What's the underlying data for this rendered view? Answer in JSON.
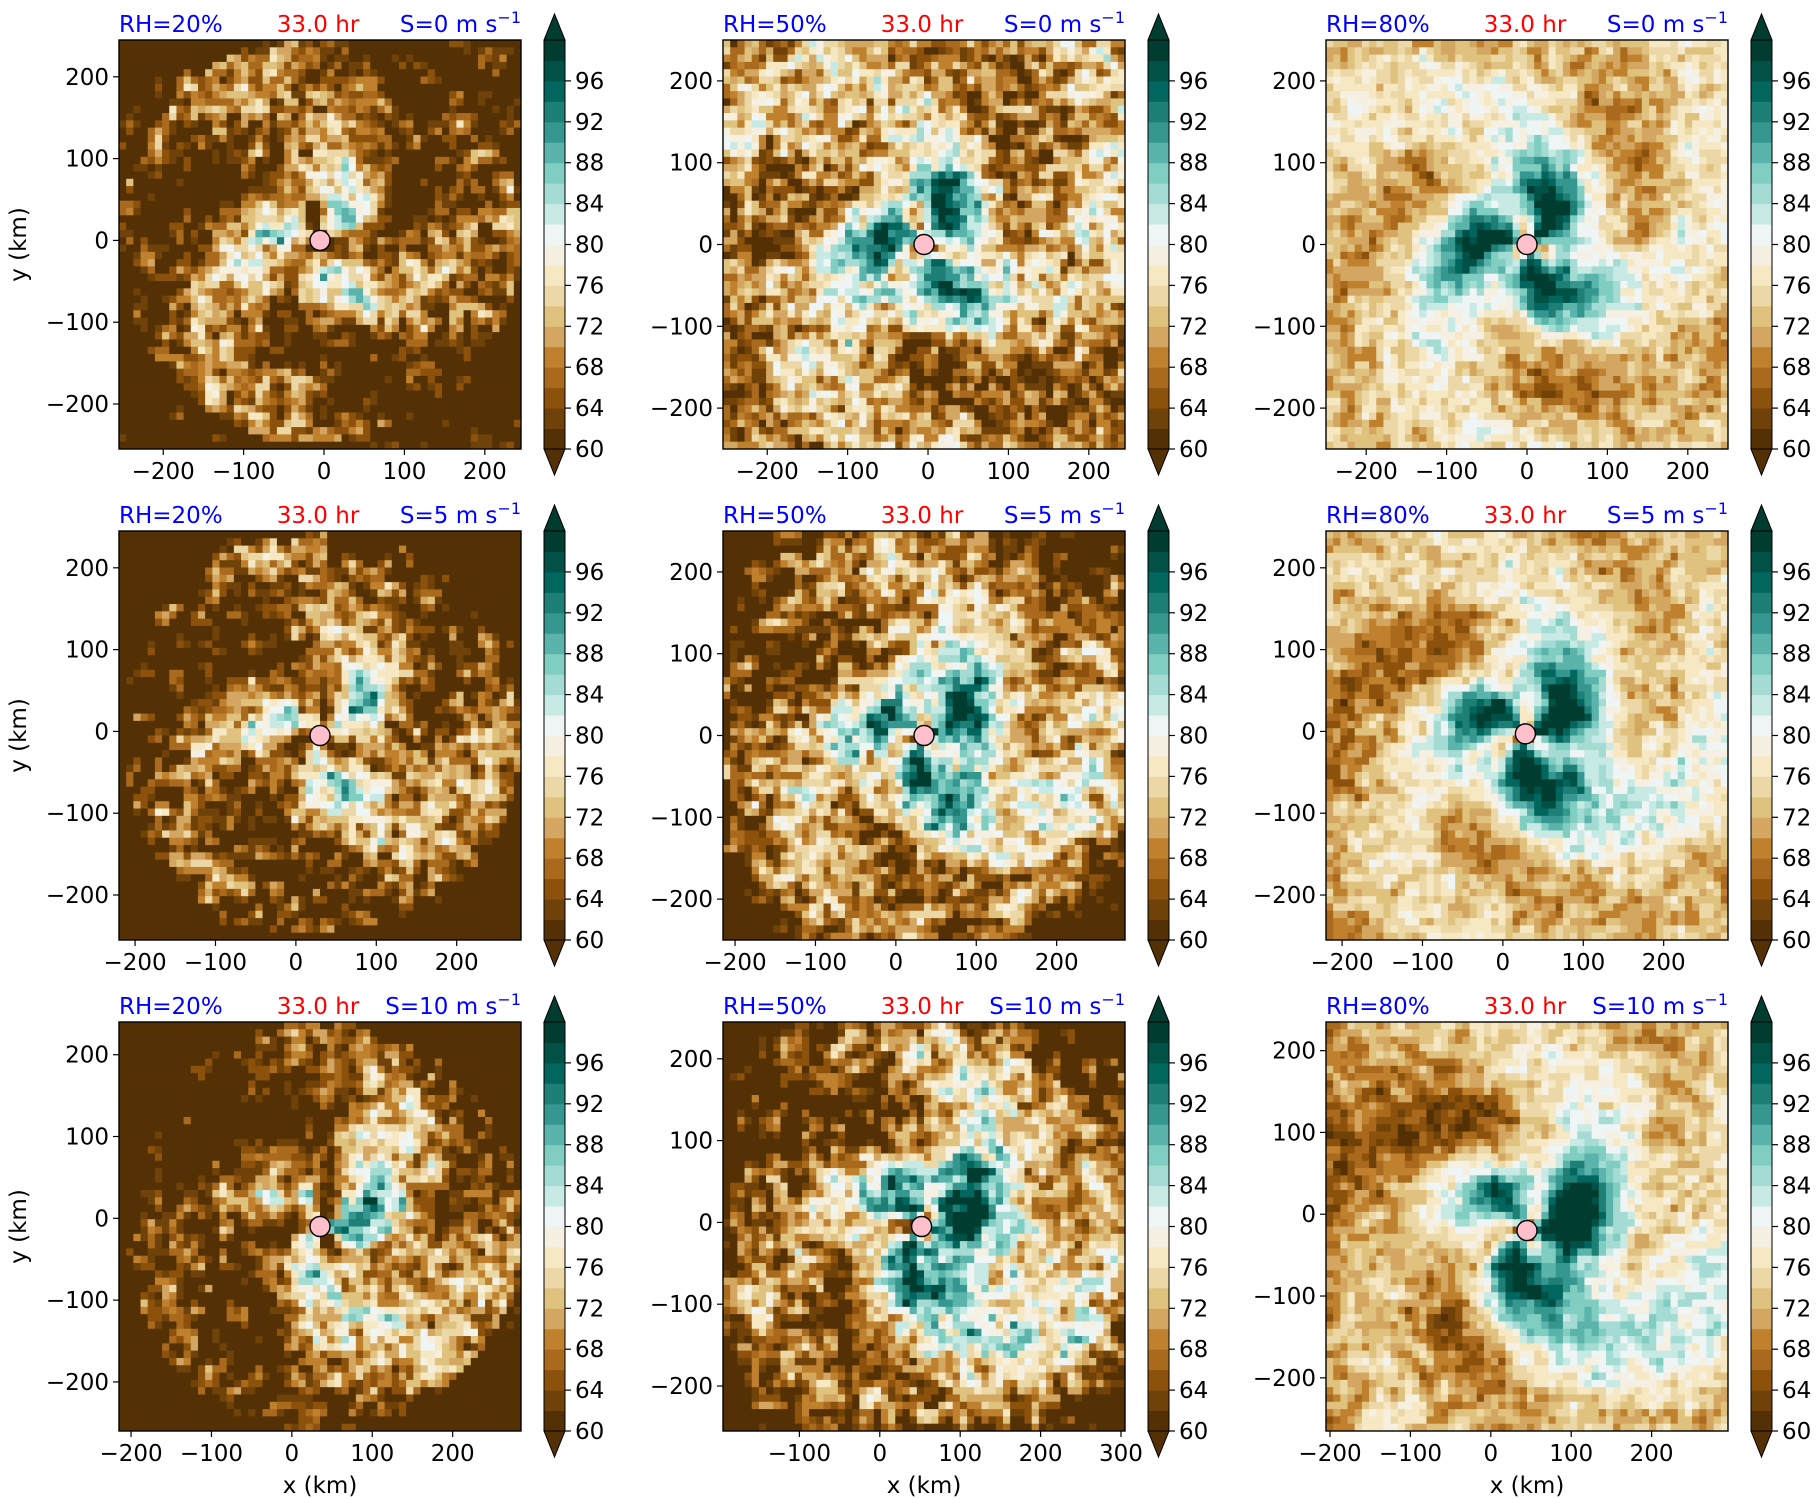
{
  "figure": {
    "colorbar": {
      "tick_labels": [
        "60",
        "64",
        "68",
        "72",
        "76",
        "80",
        "84",
        "88",
        "92",
        "96"
      ],
      "range": [
        60,
        100
      ],
      "colors": [
        "#543005",
        "#6e4209",
        "#8c510a",
        "#a96a1e",
        "#bf812d",
        "#d3a761",
        "#dfc27d",
        "#ecd8a6",
        "#f6e8c3",
        "#f5f0e1",
        "#eef5f4",
        "#c7eae5",
        "#a4dbd2",
        "#80cdc1",
        "#5ab4ab",
        "#35978f",
        "#1e7f77",
        "#01665e",
        "#015147",
        "#003c30"
      ],
      "extend": "both"
    },
    "row_y_axis_label": "y (km)",
    "col_x_axis_label": "x (km)",
    "center_marker_color": "#ffc0cb"
  },
  "chart_data": [
    {
      "type": "heatmap",
      "rh": "RH=20%",
      "time": "33.0 hr",
      "shear": "S=0 m s",
      "shear_exp": "−1",
      "xlim": [
        -255,
        245
      ],
      "ylim": [
        -255,
        245
      ],
      "xticks": [
        -200,
        -100,
        0,
        100,
        200
      ],
      "yticks": [
        -200,
        -100,
        0,
        100,
        200
      ],
      "center": [
        -5,
        0
      ],
      "ylabel": "y (km)",
      "xlabel": "",
      "variable_range": [
        60,
        100
      ]
    },
    {
      "type": "heatmap",
      "rh": "RH=50%",
      "time": "33.0 hr",
      "shear": "S=0 m s",
      "shear_exp": "−1",
      "xlim": [
        -255,
        245
      ],
      "ylim": [
        -250,
        250
      ],
      "xticks": [
        -200,
        -100,
        0,
        100,
        200
      ],
      "yticks": [
        -200,
        -100,
        0,
        100,
        200
      ],
      "center": [
        -5,
        0
      ],
      "ylabel": "",
      "xlabel": "",
      "variable_range": [
        60,
        100
      ]
    },
    {
      "type": "heatmap",
      "rh": "RH=80%",
      "time": "33.0 hr",
      "shear": "S=0 m s",
      "shear_exp": "−1",
      "xlim": [
        -250,
        250
      ],
      "ylim": [
        -250,
        250
      ],
      "xticks": [
        -200,
        -100,
        0,
        100,
        200
      ],
      "yticks": [
        -200,
        -100,
        0,
        100,
        200
      ],
      "center": [
        0,
        0
      ],
      "ylabel": "",
      "xlabel": "",
      "variable_range": [
        60,
        100
      ]
    },
    {
      "type": "heatmap",
      "rh": "RH=20%",
      "time": "33.0 hr",
      "shear": "S=5 m s",
      "shear_exp": "−1",
      "xlim": [
        -220,
        280
      ],
      "ylim": [
        -255,
        245
      ],
      "xticks": [
        -200,
        -100,
        0,
        100,
        200
      ],
      "yticks": [
        -200,
        -100,
        0,
        100,
        200
      ],
      "center": [
        30,
        -5
      ],
      "ylabel": "y (km)",
      "xlabel": "",
      "variable_range": [
        60,
        100
      ]
    },
    {
      "type": "heatmap",
      "rh": "RH=50%",
      "time": "33.0 hr",
      "shear": "S=5 m s",
      "shear_exp": "−1",
      "xlim": [
        -215,
        285
      ],
      "ylim": [
        -250,
        250
      ],
      "xticks": [
        -200,
        -100,
        0,
        100,
        200
      ],
      "yticks": [
        -200,
        -100,
        0,
        100,
        200
      ],
      "center": [
        35,
        0
      ],
      "ylabel": "",
      "xlabel": "",
      "variable_range": [
        60,
        100
      ]
    },
    {
      "type": "heatmap",
      "rh": "RH=80%",
      "time": "33.0 hr",
      "shear": "S=5 m s",
      "shear_exp": "−1",
      "xlim": [
        -220,
        280
      ],
      "ylim": [
        -255,
        245
      ],
      "xticks": [
        -200,
        -100,
        0,
        100,
        200
      ],
      "yticks": [
        -200,
        -100,
        0,
        100,
        200
      ],
      "center": [
        28,
        -3
      ],
      "ylabel": "",
      "xlabel": "",
      "variable_range": [
        60,
        100
      ]
    },
    {
      "type": "heatmap",
      "rh": "RH=20%",
      "time": "33.0 hr",
      "shear": "S=10 m s",
      "shear_exp": "−1",
      "xlim": [
        -215,
        285
      ],
      "ylim": [
        -260,
        240
      ],
      "xticks": [
        -200,
        -100,
        0,
        100,
        200
      ],
      "yticks": [
        -200,
        -100,
        0,
        100,
        200
      ],
      "center": [
        35,
        -10
      ],
      "ylabel": "y (km)",
      "xlabel": "x (km)",
      "variable_range": [
        60,
        100
      ]
    },
    {
      "type": "heatmap",
      "rh": "RH=50%",
      "time": "33.0 hr",
      "shear": "S=10 m s",
      "shear_exp": "−1",
      "xlim": [
        -195,
        305
      ],
      "ylim": [
        -255,
        245
      ],
      "xticks": [
        -100,
        0,
        100,
        200,
        300
      ],
      "yticks": [
        -200,
        -100,
        0,
        100,
        200
      ],
      "center": [
        52,
        -5
      ],
      "ylabel": "",
      "xlabel": "x (km)",
      "variable_range": [
        60,
        100
      ]
    },
    {
      "type": "heatmap",
      "rh": "RH=80%",
      "time": "33.0 hr",
      "shear": "S=10 m s",
      "shear_exp": "−1",
      "xlim": [
        -205,
        295
      ],
      "ylim": [
        -265,
        235
      ],
      "xticks": [
        -200,
        -100,
        0,
        100,
        200
      ],
      "yticks": [
        -200,
        -100,
        0,
        100,
        200
      ],
      "center": [
        45,
        -20
      ],
      "ylabel": "",
      "xlabel": "x (km)",
      "variable_range": [
        60,
        100
      ]
    }
  ]
}
